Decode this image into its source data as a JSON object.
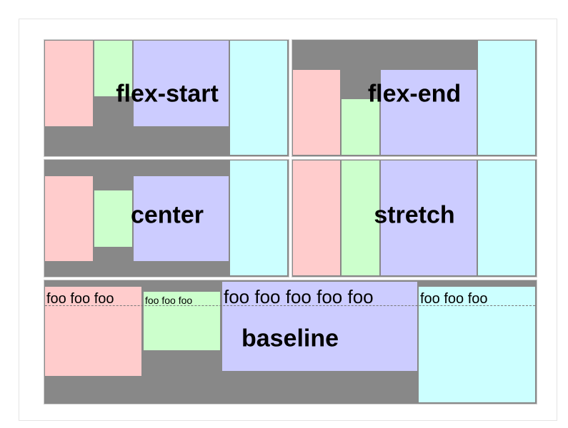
{
  "panels": {
    "flex_start": {
      "label": "flex-start"
    },
    "flex_end": {
      "label": "flex-end"
    },
    "center": {
      "label": "center"
    },
    "stretch": {
      "label": "stretch"
    },
    "baseline": {
      "label": "baseline",
      "texts": [
        "foo foo foo",
        "foo foo foo",
        "foo foo foo foo foo",
        "foo foo foo"
      ]
    }
  },
  "colors": {
    "container": "#888888",
    "item1": "#ffcccc",
    "item2": "#ccffcc",
    "item3": "#ccccff",
    "item4": "#ccffff"
  }
}
